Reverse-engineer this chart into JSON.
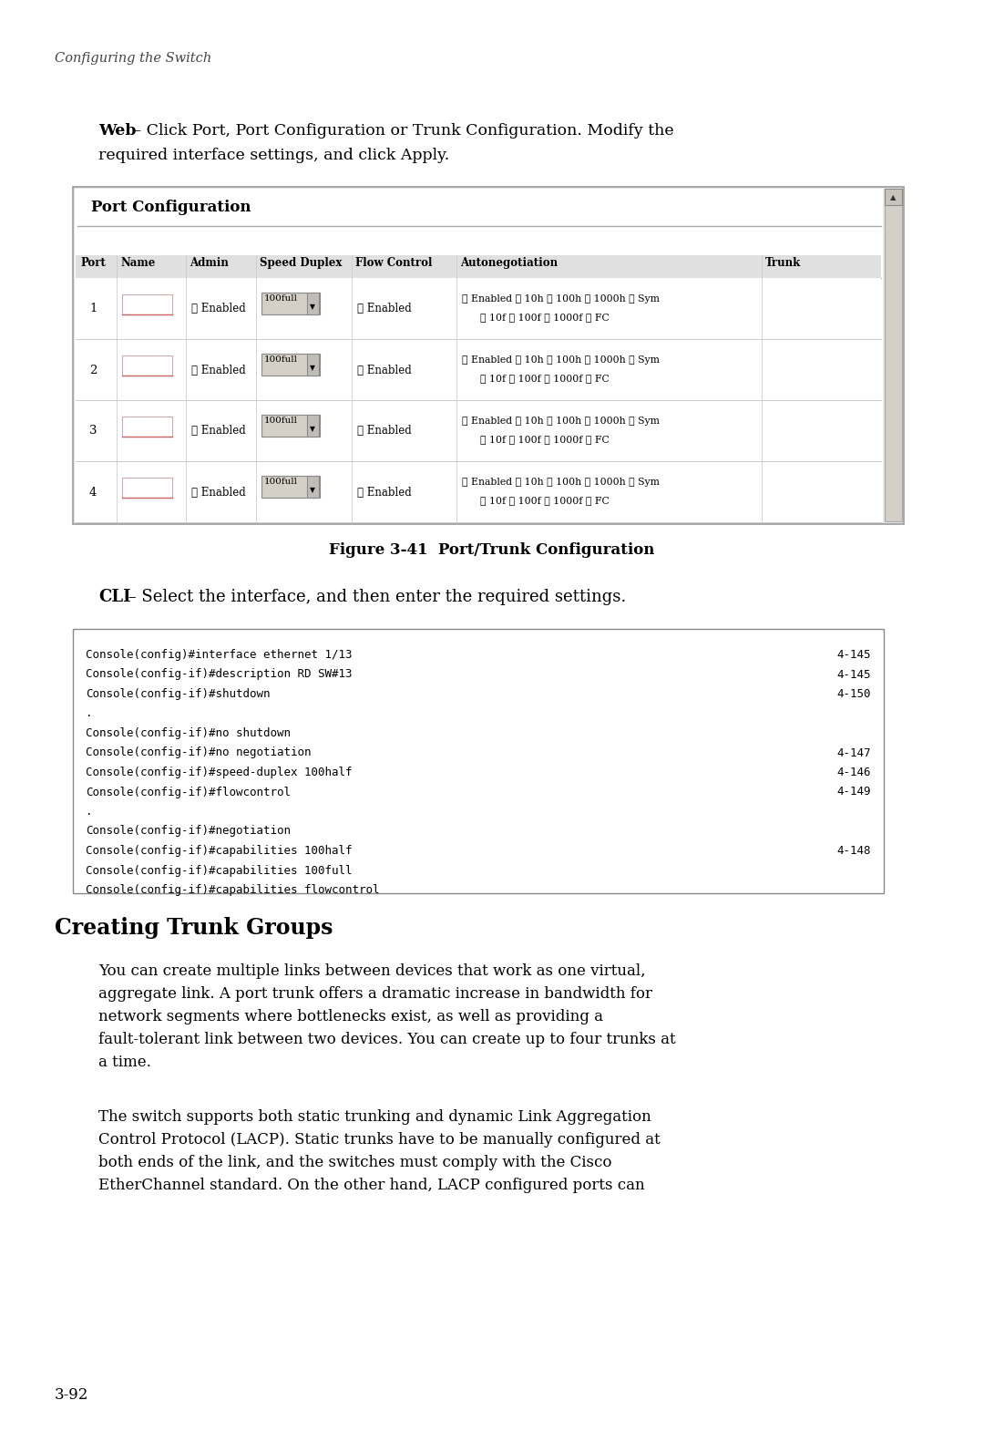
{
  "bg_color": "#ffffff",
  "page_width": 10.8,
  "page_height": 15.7,
  "header_text": "Configuring the Switch",
  "web_line1": "Web – Click Port, Port Configuration or Trunk Configuration. Modify the",
  "web_line2": "required interface settings, and click Apply.",
  "figure_caption": "Figure 3-41  Port/Trunk Configuration",
  "cli_line0": "CLI – Select the interface, and then enter the required settings.",
  "cli_lines": [
    [
      "Console(config)#interface ethernet 1/13",
      "4-145"
    ],
    [
      "Console(config-if)#description RD SW#13",
      "4-145"
    ],
    [
      "Console(config-if)#shutdown",
      "4-150"
    ],
    [
      ".",
      ""
    ],
    [
      "Console(config-if)#no shutdown",
      ""
    ],
    [
      "Console(config-if)#no negotiation",
      "4-147"
    ],
    [
      "Console(config-if)#speed-duplex 100half",
      "4-146"
    ],
    [
      "Console(config-if)#flowcontrol",
      "4-149"
    ],
    [
      ".",
      ""
    ],
    [
      "Console(config-if)#negotiation",
      ""
    ],
    [
      "Console(config-if)#capabilities 100half",
      "4-148"
    ],
    [
      "Console(config-if)#capabilities 100full",
      ""
    ],
    [
      "Console(config-if)#capabilities flowcontrol",
      ""
    ]
  ],
  "section_title": "Creating Trunk Groups",
  "para1_lines": [
    "You can create multiple links between devices that work as one virtual,",
    "aggregate link. A port trunk offers a dramatic increase in bandwidth for",
    "network segments where bottlenecks exist, as well as providing a",
    "fault-tolerant link between two devices. You can create up to four trunks at",
    "a time."
  ],
  "para2_lines": [
    "The switch supports both static trunking and dynamic Link Aggregation",
    "Control Protocol (LACP). Static trunks have to be manually configured at",
    "both ends of the link, and the switches must comply with the Cisco",
    "EtherChannel standard. On the other hand, LACP configured ports can"
  ],
  "page_number": "3-92"
}
